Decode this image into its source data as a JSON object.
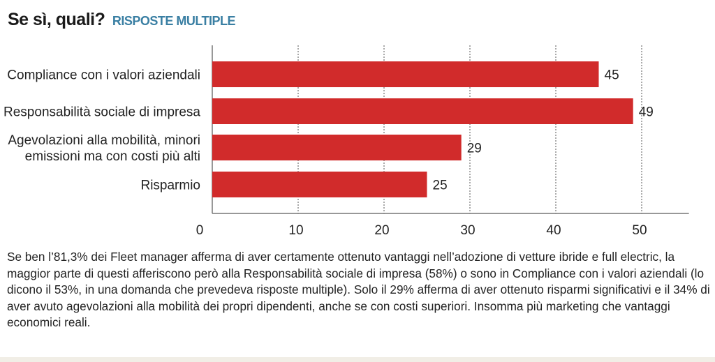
{
  "chart_data": {
    "type": "bar",
    "orientation": "horizontal",
    "title": "Se sì, quali?",
    "subtitle": "RISPOSTE MULTIPLE",
    "categories": [
      [
        "Compliance con i valori aziendali"
      ],
      [
        "Responsabilità sociale di impresa"
      ],
      [
        "Agevolazioni alla mobilità, minori",
        "emissioni ma con costi più alti"
      ],
      [
        "Risparmio"
      ]
    ],
    "values": [
      45,
      49,
      29,
      25
    ],
    "xlim": [
      0,
      57
    ],
    "xticks": [
      0,
      10,
      20,
      30,
      40,
      50
    ],
    "grid": true,
    "bar_color": "#d12b2b"
  },
  "paragraph": "Se ben l’81,3% dei Fleet manager afferma di aver certamente ottenuto vantaggi nell’adozione di vetture ibride e full electric, la maggior parte di questi afferiscono però alla Responsabilità sociale di impresa (58%) o sono in Compliance con i valori aziendali (lo dicono il 53%, in una domanda che prevedeva risposte multiple). Solo il 29% afferma di aver ottenuto risparmi significativi e il 34% di aver avuto agevolazioni alla mobilità dei propri dipendenti, anche se con costi superiori. Insomma più marketing che vantaggi economici reali."
}
